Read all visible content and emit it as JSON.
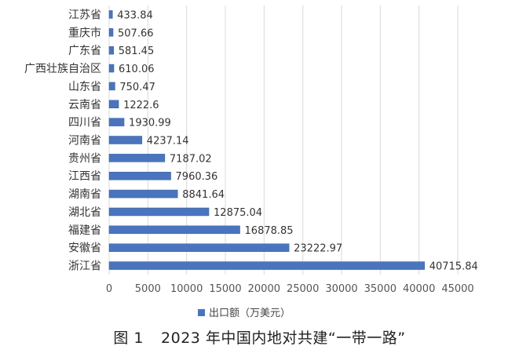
{
  "chart_data": {
    "type": "bar",
    "orientation": "horizontal",
    "categories": [
      "江苏省",
      "重庆市",
      "广东省",
      "广西壮族自治区",
      "山东省",
      "云南省",
      "四川省",
      "河南省",
      "贵州省",
      "江西省",
      "湖南省",
      "湖北省",
      "福建省",
      "安徽省",
      "浙江省"
    ],
    "series": [
      {
        "name": "出口额（万美元）",
        "values": [
          433.84,
          507.66,
          581.45,
          610.06,
          750.47,
          1222.6,
          1930.99,
          4237.14,
          7187.02,
          7960.36,
          8841.64,
          12875.04,
          16878.85,
          23222.97,
          40715.84
        ],
        "value_labels": [
          "433.84",
          "507.66",
          "581.45",
          "610.06",
          "750.47",
          "1222.6",
          "1930.99",
          "4237.14",
          "7187.02",
          "7960.36",
          "8841.64",
          "12875.04",
          "16878.85",
          "23222.97",
          "40715.84"
        ],
        "color": "#4a74be"
      }
    ],
    "xlim": [
      0,
      45000
    ],
    "xticks": [
      "0",
      "5000",
      "10000",
      "15000",
      "20000",
      "25000",
      "30000",
      "35000",
      "40000",
      "45000"
    ],
    "grid": "vertical",
    "legend_position": "bottom"
  },
  "caption": {
    "figure_number": "图 1",
    "title": "2023 年中国内地对共建“一带一路”"
  },
  "colors": {
    "bar": "#4a74be",
    "grid": "#d9d9d9",
    "axis_text": "#555555"
  }
}
